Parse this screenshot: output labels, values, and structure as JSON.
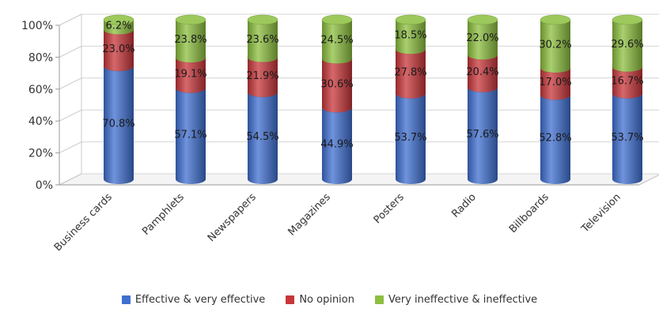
{
  "chart_data": {
    "type": "bar",
    "stacked": true,
    "percent": true,
    "style": "3d-cylinder",
    "categories": [
      "Business cards",
      "Pamphlets",
      "Newspapers",
      "Magazines",
      "Posters",
      "Radio",
      "Billboards",
      "Television"
    ],
    "series": [
      {
        "name": "Effective & very effective",
        "color": "#3f6fd0",
        "values": [
          70.8,
          57.1,
          54.5,
          44.9,
          53.7,
          57.6,
          52.8,
          53.7
        ],
        "labels": [
          "70.8%",
          "57.1%",
          "54.5%",
          "44.9%",
          "53.7%",
          "57.6%",
          "52.8%",
          "53.7%"
        ]
      },
      {
        "name": "No opinion",
        "color": "#c8363a",
        "values": [
          23.0,
          19.1,
          21.9,
          30.6,
          27.8,
          20.4,
          17.0,
          16.7
        ],
        "labels": [
          "23.0%",
          "19.1%",
          "21.9%",
          "30.6%",
          "27.8%",
          "20.4%",
          "17.0%",
          "16.7%"
        ]
      },
      {
        "name": "Very ineffective & ineffective",
        "color": "#8cbf3f",
        "values": [
          6.2,
          23.8,
          23.6,
          24.5,
          18.5,
          22.0,
          30.2,
          29.6
        ],
        "labels": [
          "6.2%",
          "23.8%",
          "23.6%",
          "24.5%",
          "18.5%",
          "22.0%",
          "30.2%",
          "29.6%"
        ]
      }
    ],
    "yticks": [
      "0%",
      "20%",
      "40%",
      "60%",
      "80%",
      "100%"
    ],
    "ylim": [
      0,
      100
    ],
    "grid": true,
    "legend": "bottom"
  }
}
